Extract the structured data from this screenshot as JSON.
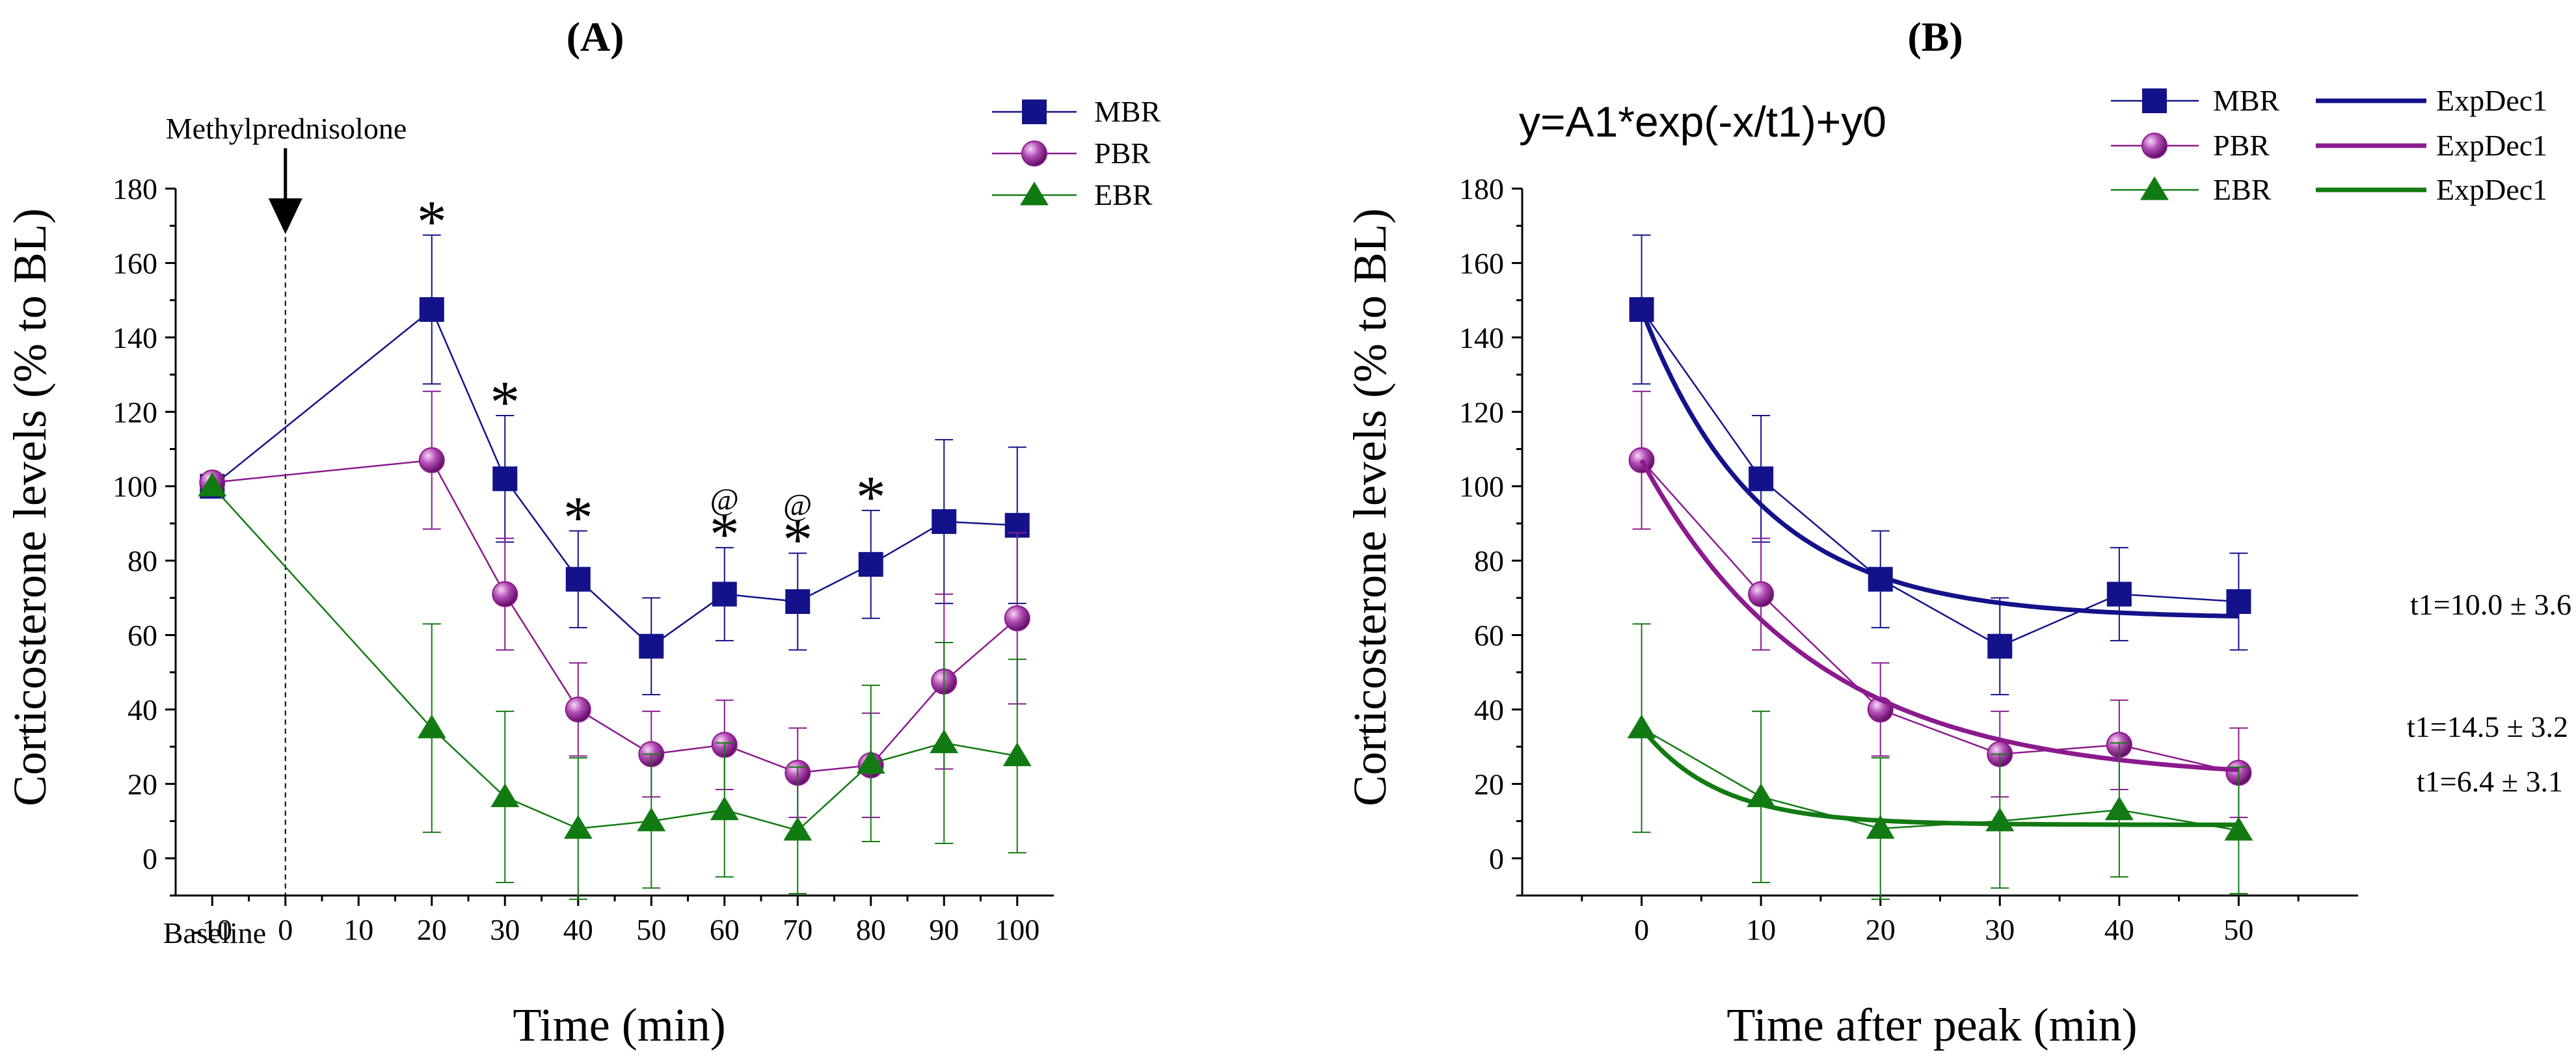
{
  "colors": {
    "mbr": "#13128a",
    "pbr": "#8b1a8e",
    "ebr": "#127a12",
    "axis": "#000000",
    "text": "#000000"
  },
  "chart_data": [
    {
      "id": "A",
      "type": "line",
      "panel_label": "(A)",
      "ylabel": "Corticosterone levels (% to BL)",
      "xlabel": "Time (min)",
      "xlim": [
        -15,
        105
      ],
      "ylim": [
        -10,
        180
      ],
      "xticks": [
        -10,
        0,
        10,
        20,
        30,
        40,
        50,
        60,
        70,
        80,
        90,
        100
      ],
      "yticks": [
        0,
        20,
        40,
        60,
        80,
        100,
        120,
        140,
        160,
        180
      ],
      "extra_tick_label": {
        "x": -10,
        "text": "Baseline"
      },
      "annotation": {
        "text": "Methylprednisolone",
        "x": 0,
        "y_arrow_tip": 167
      },
      "legend": {
        "position": "top-right",
        "entries": [
          {
            "key": "mbr",
            "label": "MBR",
            "marker": "square"
          },
          {
            "key": "pbr",
            "label": "PBR",
            "marker": "circle"
          },
          {
            "key": "ebr",
            "label": "EBR",
            "marker": "triangle"
          }
        ]
      },
      "series": [
        {
          "name": "MBR",
          "key": "mbr",
          "marker": "square",
          "x": [
            -10,
            20,
            30,
            40,
            50,
            60,
            70,
            80,
            90,
            100
          ],
          "y": [
            100,
            147.5,
            102,
            75,
            57,
            71,
            69,
            79,
            90.5,
            89.5
          ],
          "err": [
            0,
            20,
            17,
            13,
            13,
            12.5,
            13,
            14.5,
            22,
            21
          ]
        },
        {
          "name": "PBR",
          "key": "pbr",
          "marker": "circle",
          "x": [
            -10,
            20,
            30,
            40,
            50,
            60,
            70,
            80,
            90,
            100
          ],
          "y": [
            101,
            107,
            71,
            40,
            28,
            30.5,
            23,
            25,
            47.5,
            64.5
          ],
          "err": [
            0,
            18.5,
            15,
            12.5,
            11.5,
            12,
            12,
            14,
            23.5,
            23
          ]
        },
        {
          "name": "EBR",
          "key": "ebr",
          "marker": "triangle",
          "x": [
            -10,
            20,
            30,
            40,
            50,
            60,
            70,
            80,
            90,
            100
          ],
          "y": [
            100,
            35,
            16.5,
            8,
            10,
            13,
            7.5,
            25.5,
            31,
            27.5
          ],
          "err": [
            0,
            28,
            23,
            19,
            18,
            18,
            17,
            21,
            27,
            26
          ]
        }
      ],
      "significance": [
        {
          "x": 20,
          "marks": [
            "*"
          ]
        },
        {
          "x": 30,
          "marks": [
            "*"
          ]
        },
        {
          "x": 40,
          "marks": [
            "*"
          ]
        },
        {
          "x": 60,
          "marks": [
            "*",
            "@"
          ]
        },
        {
          "x": 70,
          "marks": [
            "*",
            "@"
          ]
        },
        {
          "x": 80,
          "marks": [
            "*"
          ]
        }
      ]
    },
    {
      "id": "B",
      "type": "line",
      "panel_label": "(B)",
      "equation": "y=A1*exp(-x/t1)+y0",
      "ylabel": "Corticosterone levels (% to BL)",
      "xlabel": "Time after peak (min)",
      "xlim": [
        -10,
        60
      ],
      "ylim": [
        -10,
        180
      ],
      "xticks": [
        0,
        10,
        20,
        30,
        40,
        50
      ],
      "yticks": [
        0,
        20,
        40,
        60,
        80,
        100,
        120,
        140,
        160,
        180
      ],
      "legend": {
        "position": "top-right",
        "entries": [
          {
            "key": "mbr",
            "label": "MBR",
            "marker": "square",
            "fit_label": "ExpDec1"
          },
          {
            "key": "pbr",
            "label": "PBR",
            "marker": "circle",
            "fit_label": "ExpDec1"
          },
          {
            "key": "ebr",
            "label": "EBR",
            "marker": "triangle",
            "fit_label": "ExpDec1"
          }
        ]
      },
      "series": [
        {
          "name": "MBR",
          "key": "mbr",
          "marker": "square",
          "x": [
            0,
            10,
            20,
            30,
            40,
            50
          ],
          "y": [
            147.5,
            102,
            75,
            57,
            71,
            69
          ],
          "err": [
            20,
            17,
            13,
            13,
            12.5,
            13
          ],
          "fit": {
            "model": "ExpDec1",
            "A1": 83,
            "t1": 10.0,
            "y0": 64.5
          },
          "fit_label": "t1=10.0 ± 3.6"
        },
        {
          "name": "PBR",
          "key": "pbr",
          "marker": "circle",
          "x": [
            0,
            10,
            20,
            30,
            40,
            50
          ],
          "y": [
            107,
            71,
            40,
            28,
            30.5,
            23
          ],
          "err": [
            18.5,
            15,
            12.5,
            11.5,
            12,
            12
          ],
          "fit": {
            "model": "ExpDec1",
            "A1": 86,
            "t1": 14.5,
            "y0": 21
          },
          "fit_label": "t1=14.5 ± 3.2"
        },
        {
          "name": "EBR",
          "key": "ebr",
          "marker": "triangle",
          "x": [
            0,
            10,
            20,
            30,
            40,
            50
          ],
          "y": [
            35,
            16.5,
            8,
            10,
            13,
            7.5
          ],
          "err": [
            28,
            23,
            19,
            18,
            18,
            17
          ],
          "fit": {
            "model": "ExpDec1",
            "A1": 26,
            "t1": 6.4,
            "y0": 9
          },
          "fit_label": "t1=6.4 ± 3.1"
        }
      ]
    }
  ]
}
